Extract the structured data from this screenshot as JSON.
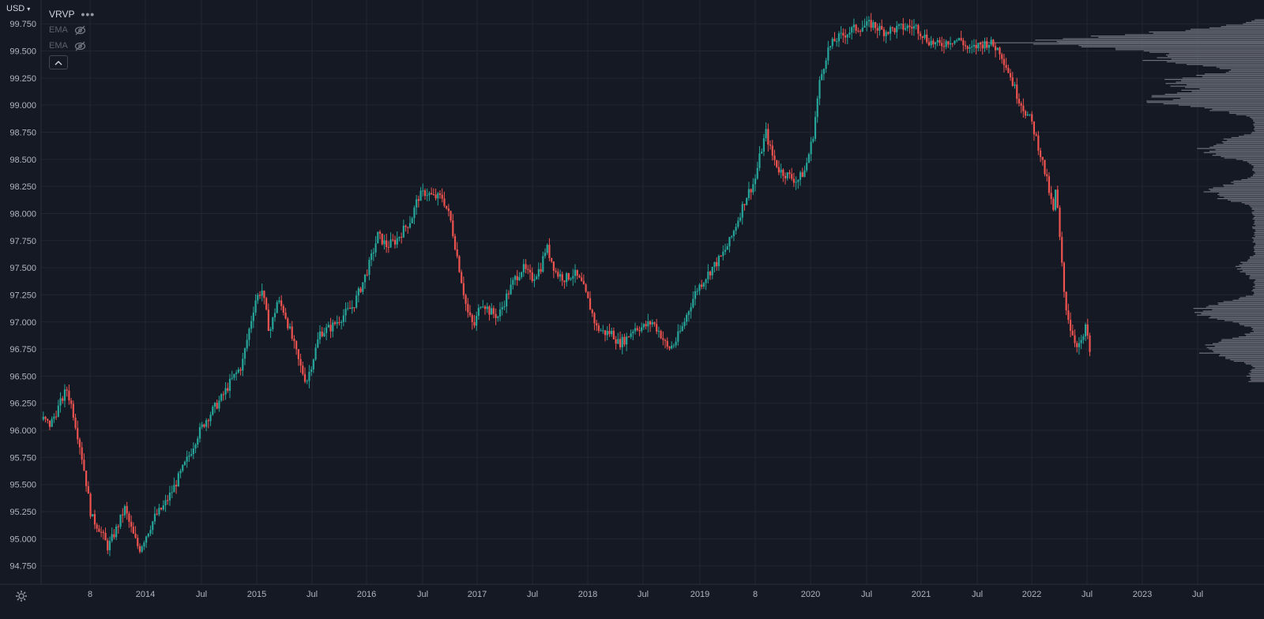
{
  "header": {
    "currency": "USD",
    "indicators": [
      {
        "name": "VRVP",
        "dimmed": false,
        "menu_icon": "more-dots-icon"
      },
      {
        "name": "EMA",
        "dimmed": true,
        "visibility_icon": "eye-crossed-icon"
      },
      {
        "name": "EMA",
        "dimmed": true,
        "visibility_icon": "eye-crossed-icon"
      }
    ],
    "collapse_icon": "chevron-up-icon"
  },
  "footer": {
    "settings_icon": "gear-icon"
  },
  "colors": {
    "background": "#151924",
    "grid": "#222632",
    "up": "#26a69a",
    "down": "#ef5350",
    "volume_profile": "#787b86",
    "axis_text": "#b2b5be"
  },
  "chart_data": {
    "type": "candlestick",
    "y_axis": {
      "ticks": [
        "94.750",
        "95.000",
        "95.250",
        "95.500",
        "95.750",
        "96.000",
        "96.250",
        "96.500",
        "96.750",
        "97.000",
        "97.250",
        "97.500",
        "97.750",
        "98.000",
        "98.250",
        "98.500",
        "98.750",
        "99.000",
        "99.250",
        "99.500",
        "99.750"
      ],
      "range": [
        94.58,
        99.97
      ],
      "position": "right-of-chart-left"
    },
    "x_axis": {
      "ticks": [
        "8",
        "2014",
        "Jul",
        "2015",
        "Jul",
        "2016",
        "Jul",
        "2017",
        "Jul",
        "2018",
        "Jul",
        "2019",
        "8",
        "2020",
        "Jul",
        "2021",
        "Jul",
        "2022",
        "Jul",
        "2023",
        "Jul"
      ],
      "start": "2013.10",
      "end": "2023.84"
    },
    "price_path": [
      [
        "2013.12",
        96.1
      ],
      [
        "2013.18",
        96.05
      ],
      [
        "2013.25",
        96.2
      ],
      [
        "2013.33",
        96.38
      ],
      [
        "2013.38",
        96.2
      ],
      [
        "2013.45",
        95.85
      ],
      [
        "2013.5",
        95.55
      ],
      [
        "2013.55",
        95.2
      ],
      [
        "2013.62",
        95.1
      ],
      [
        "2013.7",
        94.92
      ],
      [
        "2013.78",
        95.1
      ],
      [
        "2013.85",
        95.28
      ],
      [
        "2013.92",
        95.05
      ],
      [
        "2013.98",
        94.9
      ],
      [
        "2014.05",
        95.05
      ],
      [
        "2014.12",
        95.2
      ],
      [
        "2014.2",
        95.3
      ],
      [
        "2014.28",
        95.45
      ],
      [
        "2014.35",
        95.6
      ],
      [
        "2014.42",
        95.75
      ],
      [
        "2014.5",
        95.95
      ],
      [
        "2014.58",
        96.1
      ],
      [
        "2014.65",
        96.2
      ],
      [
        "2014.72",
        96.3
      ],
      [
        "2014.8",
        96.45
      ],
      [
        "2014.9",
        96.6
      ],
      [
        "2014.95",
        96.85
      ],
      [
        "2015.02",
        97.2
      ],
      [
        "2015.08",
        97.3
      ],
      [
        "2015.15",
        96.9
      ],
      [
        "2015.22",
        97.2
      ],
      [
        "2015.28",
        97.1
      ],
      [
        "2015.35",
        96.85
      ],
      [
        "2015.42",
        96.6
      ],
      [
        "2015.48",
        96.45
      ],
      [
        "2015.55",
        96.7
      ],
      [
        "2015.6",
        96.9
      ],
      [
        "2015.7",
        96.95
      ],
      [
        "2015.8",
        97.05
      ],
      [
        "2015.9",
        97.15
      ],
      [
        "2015.98",
        97.35
      ],
      [
        "2016.05",
        97.55
      ],
      [
        "2016.12",
        97.8
      ],
      [
        "2016.2",
        97.7
      ],
      [
        "2016.28",
        97.75
      ],
      [
        "2016.35",
        97.85
      ],
      [
        "2016.42",
        97.95
      ],
      [
        "2016.48",
        98.15
      ],
      [
        "2016.55",
        98.2
      ],
      [
        "2016.62",
        98.15
      ],
      [
        "2016.7",
        98.15
      ],
      [
        "2016.77",
        97.95
      ],
      [
        "2016.85",
        97.5
      ],
      [
        "2016.92",
        97.1
      ],
      [
        "2016.98",
        96.95
      ],
      [
        "2017.05",
        97.2
      ],
      [
        "2017.12",
        97.1
      ],
      [
        "2017.2",
        97.05
      ],
      [
        "2017.28",
        97.25
      ],
      [
        "2017.35",
        97.4
      ],
      [
        "2017.42",
        97.5
      ],
      [
        "2017.5",
        97.4
      ],
      [
        "2017.58",
        97.5
      ],
      [
        "2017.63",
        97.7
      ],
      [
        "2017.72",
        97.45
      ],
      [
        "2017.8",
        97.4
      ],
      [
        "2017.88",
        97.45
      ],
      [
        "2017.95",
        97.35
      ],
      [
        "2018.02",
        97.15
      ],
      [
        "2018.08",
        96.95
      ],
      [
        "2018.15",
        96.9
      ],
      [
        "2018.22",
        96.9
      ],
      [
        "2018.28",
        96.8
      ],
      [
        "2018.35",
        96.85
      ],
      [
        "2018.42",
        96.95
      ],
      [
        "2018.5",
        96.95
      ],
      [
        "2018.58",
        97.0
      ],
      [
        "2018.65",
        96.9
      ],
      [
        "2018.72",
        96.75
      ],
      [
        "2018.78",
        96.8
      ],
      [
        "2018.85",
        96.95
      ],
      [
        "2018.92",
        97.15
      ],
      [
        "2018.98",
        97.3
      ],
      [
        "2019.05",
        97.4
      ],
      [
        "2019.12",
        97.5
      ],
      [
        "2019.2",
        97.6
      ],
      [
        "2019.28",
        97.75
      ],
      [
        "2019.35",
        97.95
      ],
      [
        "2019.42",
        98.15
      ],
      [
        "2019.5",
        98.3
      ],
      [
        "2019.55",
        98.55
      ],
      [
        "2019.6",
        98.75
      ],
      [
        "2019.65",
        98.55
      ],
      [
        "2019.72",
        98.4
      ],
      [
        "2019.8",
        98.35
      ],
      [
        "2019.88",
        98.3
      ],
      [
        "2019.95",
        98.4
      ],
      [
        "2020.02",
        98.7
      ],
      [
        "2020.08",
        99.2
      ],
      [
        "2020.15",
        99.5
      ],
      [
        "2020.22",
        99.6
      ],
      [
        "2020.3",
        99.65
      ],
      [
        "2020.38",
        99.7
      ],
      [
        "2020.45",
        99.72
      ],
      [
        "2020.55",
        99.75
      ],
      [
        "2020.65",
        99.68
      ],
      [
        "2020.75",
        99.7
      ],
      [
        "2020.85",
        99.72
      ],
      [
        "2020.95",
        99.72
      ],
      [
        "2021.05",
        99.6
      ],
      [
        "2021.15",
        99.55
      ],
      [
        "2021.25",
        99.6
      ],
      [
        "2021.35",
        99.6
      ],
      [
        "2021.42",
        99.5
      ],
      [
        "2021.5",
        99.55
      ],
      [
        "2021.6",
        99.58
      ],
      [
        "2021.7",
        99.5
      ],
      [
        "2021.78",
        99.3
      ],
      [
        "2021.85",
        99.1
      ],
      [
        "2021.92",
        98.95
      ],
      [
        "2021.98",
        98.85
      ],
      [
        "2022.05",
        98.6
      ],
      [
        "2022.12",
        98.3
      ],
      [
        "2022.18",
        98.0
      ],
      [
        "2022.2",
        98.25
      ],
      [
        "2022.24",
        97.7
      ],
      [
        "2022.28",
        97.2
      ],
      [
        "2022.33",
        96.95
      ],
      [
        "2022.38",
        96.8
      ],
      [
        "2022.43",
        96.8
      ],
      [
        "2022.47",
        96.95
      ],
      [
        "2022.5",
        96.8
      ],
      [
        "2022.52",
        96.4
      ]
    ],
    "volume_profile": {
      "poc_price": 99.575,
      "peaks": [
        [
          99.575,
          1.0
        ],
        [
          99.45,
          0.55
        ],
        [
          99.2,
          0.45
        ],
        [
          99.05,
          0.5
        ],
        [
          98.6,
          0.28
        ],
        [
          98.2,
          0.25
        ],
        [
          97.5,
          0.12
        ],
        [
          97.1,
          0.3
        ],
        [
          96.75,
          0.3
        ],
        [
          96.5,
          0.08
        ],
        [
          94.9,
          0.03
        ],
        [
          95.25,
          0.04
        ]
      ]
    }
  }
}
